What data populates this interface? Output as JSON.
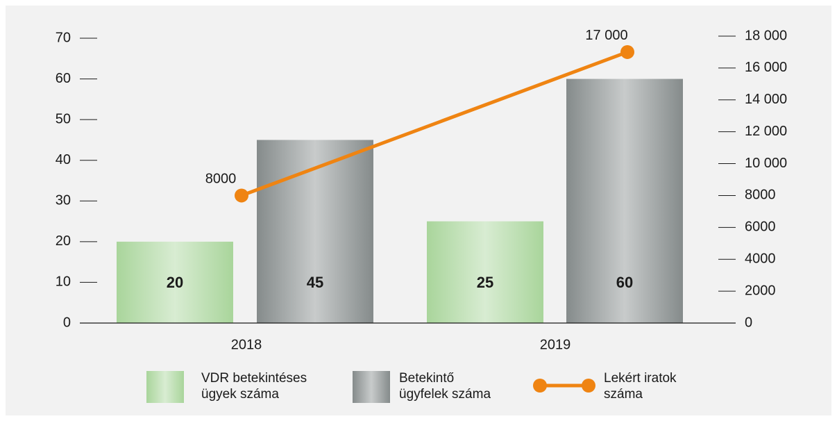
{
  "chart_data": {
    "type": "bar-line",
    "categories": [
      "2018",
      "2019"
    ],
    "series": [
      {
        "name": "VDR betekintéses ügyek száma",
        "color": "#a9d59b",
        "type": "bar",
        "values": [
          20,
          25
        ]
      },
      {
        "name": "Betekintő ügyfelek száma",
        "color": "#858b8b",
        "type": "bar",
        "values": [
          45,
          60
        ]
      },
      {
        "name": "Lekért iratok száma",
        "color": "#ef8412",
        "type": "line",
        "axis": "y2",
        "values": [
          8000,
          17000
        ],
        "value_labels": [
          "8000",
          "17 000"
        ]
      }
    ],
    "ylim": [
      0,
      70
    ],
    "yticks": [
      0,
      10,
      20,
      30,
      40,
      50,
      60,
      70
    ],
    "y2lim": [
      0,
      18000
    ],
    "y2ticks": [
      0,
      2000,
      4000,
      6000,
      8000,
      {
        "value": 10000,
        "label": "10 000"
      },
      {
        "value": 12000,
        "label": "12 000"
      },
      {
        "value": 14000,
        "label": "14 000"
      },
      {
        "value": 16000,
        "label": "16 000"
      },
      {
        "value": 18000,
        "label": "18 000"
      }
    ]
  }
}
